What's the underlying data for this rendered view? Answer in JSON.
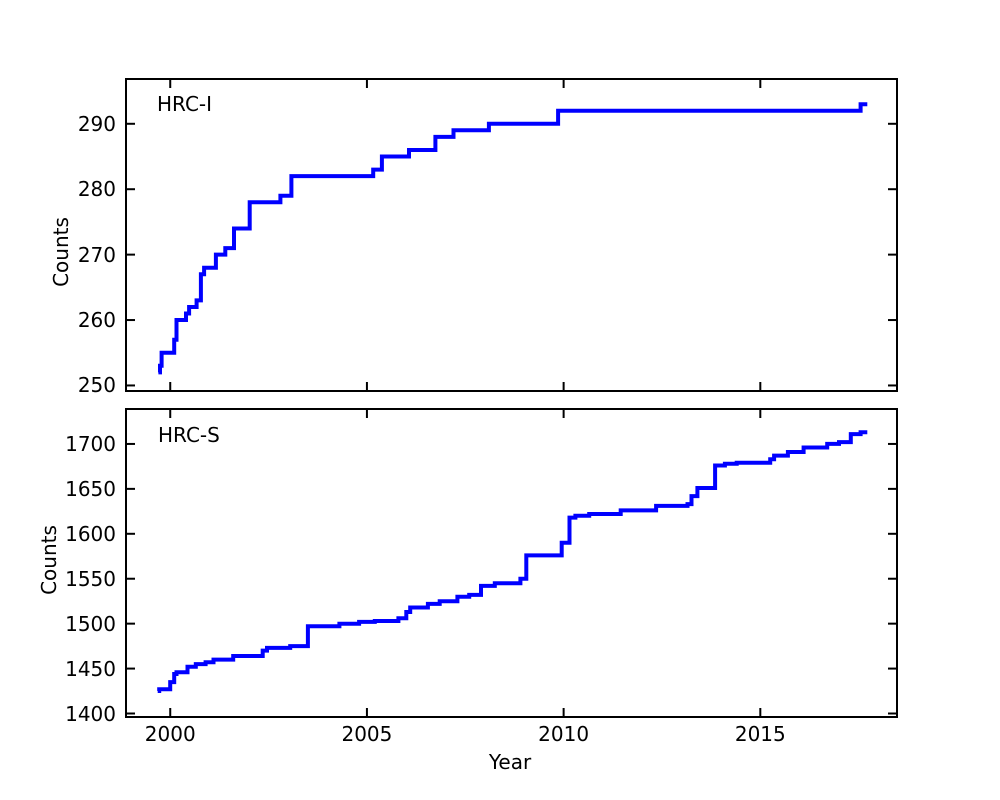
{
  "figure": {
    "xlabel": "Year",
    "background_color": "#ffffff",
    "line_color": "#0000ff",
    "axis_color": "#000000"
  },
  "chart_data": [
    {
      "type": "line",
      "style": "step-after",
      "label": "HRC-I",
      "ylabel": "Counts",
      "xlabel": "",
      "xlim": [
        1998.85,
        2018.5
      ],
      "ylim": [
        249,
        297
      ],
      "xticks": [
        2000,
        2005,
        2010,
        2015
      ],
      "yticks": [
        250,
        260,
        270,
        280,
        290
      ],
      "show_xtick_labels": false,
      "grid": false,
      "legend": "none",
      "points": [
        [
          1999.7,
          252
        ],
        [
          1999.74,
          253
        ],
        [
          1999.78,
          255
        ],
        [
          2000.1,
          257
        ],
        [
          2000.16,
          260
        ],
        [
          2000.4,
          261
        ],
        [
          2000.48,
          262
        ],
        [
          2000.67,
          263
        ],
        [
          2000.78,
          267
        ],
        [
          2000.86,
          268
        ],
        [
          2001.16,
          270
        ],
        [
          2001.4,
          271
        ],
        [
          2001.62,
          274
        ],
        [
          2002.02,
          278
        ],
        [
          2002.8,
          279
        ],
        [
          2003.08,
          282
        ],
        [
          2005.16,
          283
        ],
        [
          2005.38,
          285
        ],
        [
          2006.07,
          286
        ],
        [
          2006.74,
          288
        ],
        [
          2007.2,
          289
        ],
        [
          2008.1,
          290
        ],
        [
          2009.86,
          292
        ],
        [
          2017.55,
          293
        ],
        [
          2017.72,
          293
        ]
      ]
    },
    {
      "type": "line",
      "style": "step-after",
      "label": "HRC-S",
      "ylabel": "Counts",
      "xlabel": "Year",
      "xlim": [
        1998.85,
        2018.5
      ],
      "ylim": [
        1395,
        1740
      ],
      "xticks": [
        2000,
        2005,
        2010,
        2015
      ],
      "yticks": [
        1400,
        1450,
        1500,
        1550,
        1600,
        1650,
        1700
      ],
      "show_xtick_labels": true,
      "grid": false,
      "legend": "none",
      "points": [
        [
          1999.68,
          1425
        ],
        [
          1999.72,
          1427
        ],
        [
          2000.0,
          1435
        ],
        [
          2000.1,
          1444
        ],
        [
          2000.16,
          1446
        ],
        [
          2000.44,
          1452
        ],
        [
          2000.65,
          1455
        ],
        [
          2000.9,
          1457
        ],
        [
          2001.1,
          1460
        ],
        [
          2001.6,
          1464
        ],
        [
          2002.35,
          1470
        ],
        [
          2002.46,
          1473
        ],
        [
          2003.05,
          1475
        ],
        [
          2003.5,
          1497
        ],
        [
          2004.3,
          1500
        ],
        [
          2004.8,
          1502
        ],
        [
          2005.2,
          1503
        ],
        [
          2005.8,
          1506
        ],
        [
          2006.0,
          1513
        ],
        [
          2006.1,
          1518
        ],
        [
          2006.55,
          1522
        ],
        [
          2006.85,
          1525
        ],
        [
          2007.3,
          1530
        ],
        [
          2007.6,
          1532
        ],
        [
          2007.9,
          1542
        ],
        [
          2008.25,
          1545
        ],
        [
          2008.9,
          1550
        ],
        [
          2009.05,
          1576
        ],
        [
          2009.95,
          1590
        ],
        [
          2010.15,
          1618
        ],
        [
          2010.3,
          1620
        ],
        [
          2010.65,
          1622
        ],
        [
          2011.45,
          1626
        ],
        [
          2012.35,
          1631
        ],
        [
          2013.15,
          1633
        ],
        [
          2013.25,
          1642
        ],
        [
          2013.4,
          1651
        ],
        [
          2013.85,
          1676
        ],
        [
          2014.1,
          1678
        ],
        [
          2014.4,
          1679
        ],
        [
          2015.25,
          1683
        ],
        [
          2015.35,
          1687
        ],
        [
          2015.7,
          1691
        ],
        [
          2016.1,
          1696
        ],
        [
          2016.7,
          1700
        ],
        [
          2017.0,
          1702
        ],
        [
          2017.3,
          1711
        ],
        [
          2017.55,
          1713
        ],
        [
          2017.72,
          1713
        ]
      ]
    }
  ]
}
